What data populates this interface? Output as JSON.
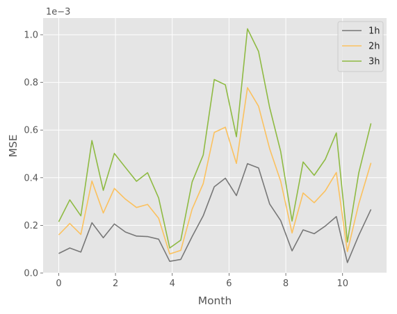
{
  "chart_data": {
    "type": "line",
    "title": "",
    "xlabel": "Month",
    "ylabel": "MSE",
    "y_offset_label": "1e−3",
    "xlim": [
      -0.55,
      11.55
    ],
    "ylim": [
      0.0,
      1.07
    ],
    "x_ticks": [
      0,
      2,
      4,
      6,
      8,
      10
    ],
    "y_ticks": [
      0.0,
      0.2,
      0.4,
      0.6,
      0.8,
      1.0
    ],
    "y_tick_labels": [
      "0.0",
      "0.2",
      "0.4",
      "0.6",
      "0.8",
      "1.0"
    ],
    "grid": true,
    "legend_position": "top-right",
    "x": [
      0,
      0.39,
      0.78,
      1.17,
      1.57,
      1.96,
      2.35,
      2.74,
      3.13,
      3.52,
      3.91,
      4.3,
      4.7,
      5.09,
      5.48,
      5.87,
      6.26,
      6.65,
      7.04,
      7.43,
      7.82,
      8.22,
      8.61,
      9.0,
      9.39,
      9.78,
      10.17,
      10.57,
      11.0
    ],
    "series": [
      {
        "name": "1h",
        "color": "#777777",
        "values": [
          0.082,
          0.105,
          0.088,
          0.211,
          0.148,
          0.206,
          0.172,
          0.155,
          0.153,
          0.142,
          0.049,
          0.057,
          0.153,
          0.24,
          0.362,
          0.398,
          0.325,
          0.459,
          0.441,
          0.29,
          0.22,
          0.093,
          0.181,
          0.165,
          0.197,
          0.237,
          0.044,
          0.158,
          0.267
        ]
      },
      {
        "name": "2h",
        "color": "#FBC15E",
        "values": [
          0.16,
          0.208,
          0.162,
          0.386,
          0.252,
          0.355,
          0.31,
          0.275,
          0.288,
          0.23,
          0.08,
          0.095,
          0.268,
          0.375,
          0.59,
          0.612,
          0.46,
          0.778,
          0.7,
          0.522,
          0.385,
          0.168,
          0.336,
          0.295,
          0.345,
          0.422,
          0.09,
          0.29,
          0.462
        ]
      },
      {
        "name": "3h",
        "color": "#8EBA42",
        "values": [
          0.215,
          0.307,
          0.24,
          0.556,
          0.347,
          0.502,
          0.443,
          0.385,
          0.421,
          0.315,
          0.105,
          0.138,
          0.382,
          0.495,
          0.812,
          0.79,
          0.572,
          1.025,
          0.93,
          0.695,
          0.51,
          0.218,
          0.466,
          0.41,
          0.477,
          0.588,
          0.13,
          0.42,
          0.628
        ]
      }
    ]
  }
}
